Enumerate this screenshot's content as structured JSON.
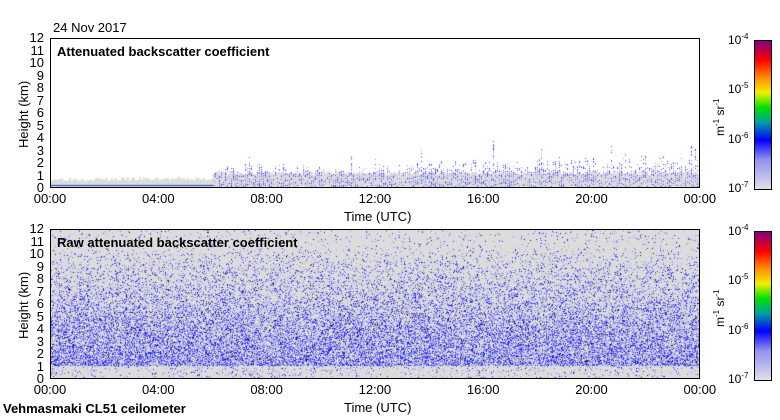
{
  "header": {
    "date": "24 Nov 2017"
  },
  "footer": {
    "station": "Vehmasmaki CL51 ceilometer"
  },
  "chart_data": [
    {
      "type": "heatmap",
      "title": "Attenuated backscatter coefficient",
      "xlabel": "Time (UTC)",
      "ylabel": "Height (km)",
      "x_ticks": [
        "00:00",
        "04:00",
        "08:00",
        "12:00",
        "16:00",
        "20:00",
        "00:00"
      ],
      "y_ticks": [
        "0",
        "1",
        "2",
        "3",
        "4",
        "5",
        "6",
        "7",
        "8",
        "9",
        "10",
        "11",
        "12"
      ],
      "ylim": [
        0,
        12
      ],
      "colorbar": {
        "ticks": [
          "10",
          "10",
          "10",
          "10"
        ],
        "exponents": [
          "-7",
          "-6",
          "-5",
          "-4"
        ],
        "unit": "m",
        "unit_exp": "-1",
        "unit2": "sr",
        "unit2_exp": "-1",
        "range": [
          1e-07,
          0.0001
        ],
        "scale": "log"
      },
      "signal_top_km_by_hour": [
        0.5,
        0.5,
        0.5,
        0.5,
        0.5,
        0.5,
        1.7,
        1.8,
        1.6,
        1.6,
        1.4,
        1.5,
        1.6,
        1.9,
        1.9,
        2.0,
        2.1,
        2.0,
        2.1,
        2.2,
        2.0,
        2.3,
        2.2,
        2.2
      ]
    },
    {
      "type": "heatmap",
      "title": "Raw attenuated backscatter coefficient",
      "xlabel": "Time (UTC)",
      "ylabel": "Height (km)",
      "x_ticks": [
        "00:00",
        "04:00",
        "08:00",
        "12:00",
        "16:00",
        "20:00",
        "00:00"
      ],
      "y_ticks": [
        "0",
        "1",
        "2",
        "3",
        "4",
        "5",
        "6",
        "7",
        "8",
        "9",
        "10",
        "11",
        "12"
      ],
      "ylim": [
        0,
        12
      ],
      "colorbar": {
        "ticks": [
          "10",
          "10",
          "10",
          "10"
        ],
        "exponents": [
          "-7",
          "-6",
          "-5",
          "-4"
        ],
        "unit": "m",
        "unit_exp": "-1",
        "unit2": "sr",
        "unit2_exp": "-1",
        "range": [
          1e-07,
          0.0001
        ],
        "scale": "log"
      },
      "noise_floor_km": 1.5
    }
  ]
}
